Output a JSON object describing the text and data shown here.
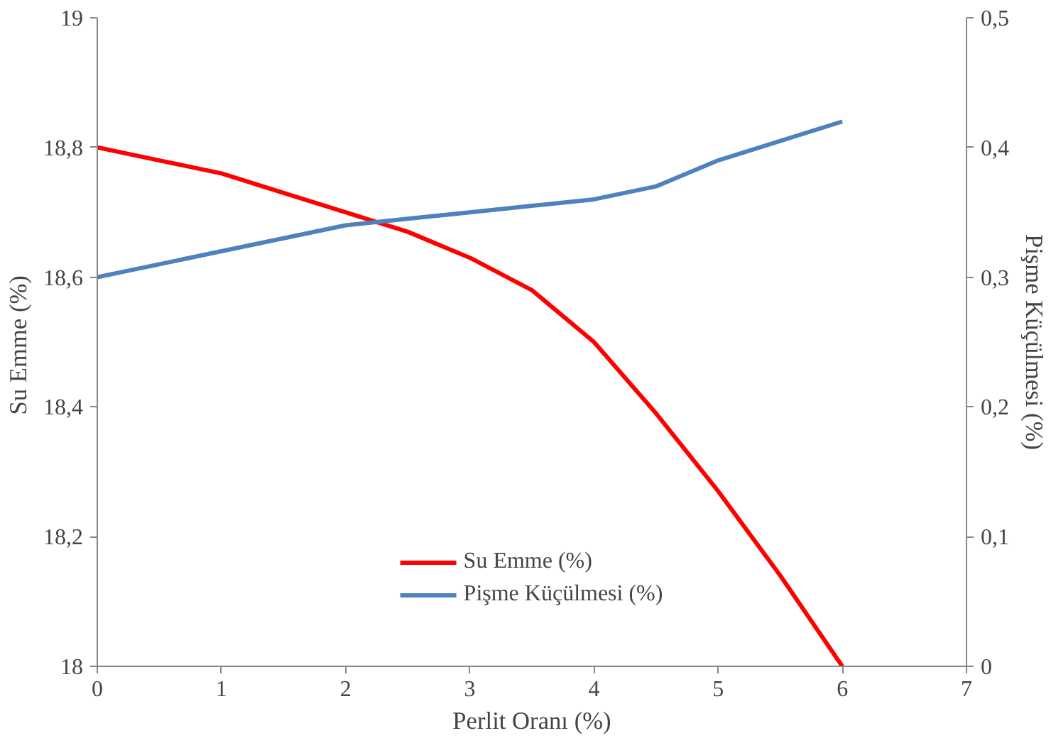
{
  "chart_data": {
    "type": "line",
    "xlabel": "Perlit Oranı (%)",
    "ylabel": "Su  Emme (%)",
    "y2label": "Pişme Küçülmesi (%)",
    "x": [
      0,
      0.5,
      1,
      1.5,
      2,
      2.5,
      3,
      3.5,
      4,
      4.5,
      5,
      5.5,
      6
    ],
    "series": [
      {
        "name": "Su Emme (%)",
        "color": "#ff0000",
        "values": [
          18.8,
          18.78,
          18.76,
          18.73,
          18.7,
          18.67,
          18.63,
          18.58,
          18.5,
          18.39,
          18.27,
          18.14,
          18.0
        ]
      },
      {
        "name": "Pişme Küçülmesi (%)",
        "color": "#4f81bd",
        "axis": "y2",
        "values": [
          0.3,
          0.31,
          0.32,
          0.33,
          0.34,
          0.345,
          0.35,
          0.355,
          0.36,
          0.37,
          0.39,
          0.405,
          0.42
        ]
      }
    ],
    "xlim": [
      0,
      7
    ],
    "xticks": [
      0,
      1,
      2,
      3,
      4,
      5,
      6,
      7
    ],
    "ylim": [
      18,
      19
    ],
    "yticks": [
      {
        "value": 18,
        "label": "18"
      },
      {
        "value": 18.2,
        "label": "18,2"
      },
      {
        "value": 18.4,
        "label": "18,4"
      },
      {
        "value": 18.6,
        "label": "18,6"
      },
      {
        "value": 18.8,
        "label": "18,8"
      },
      {
        "value": 19,
        "label": "19"
      }
    ],
    "y2lim": [
      0,
      0.5
    ],
    "y2ticks": [
      {
        "value": 0,
        "label": "0"
      },
      {
        "value": 0.1,
        "label": "0,1"
      },
      {
        "value": 0.2,
        "label": "0,2"
      },
      {
        "value": 0.3,
        "label": "0,3"
      },
      {
        "value": 0.4,
        "label": "0,4"
      },
      {
        "value": 0.5,
        "label": "0,5"
      }
    ],
    "grid": false,
    "legend": "bottom",
    "marker": "none",
    "line_style": "solid"
  }
}
